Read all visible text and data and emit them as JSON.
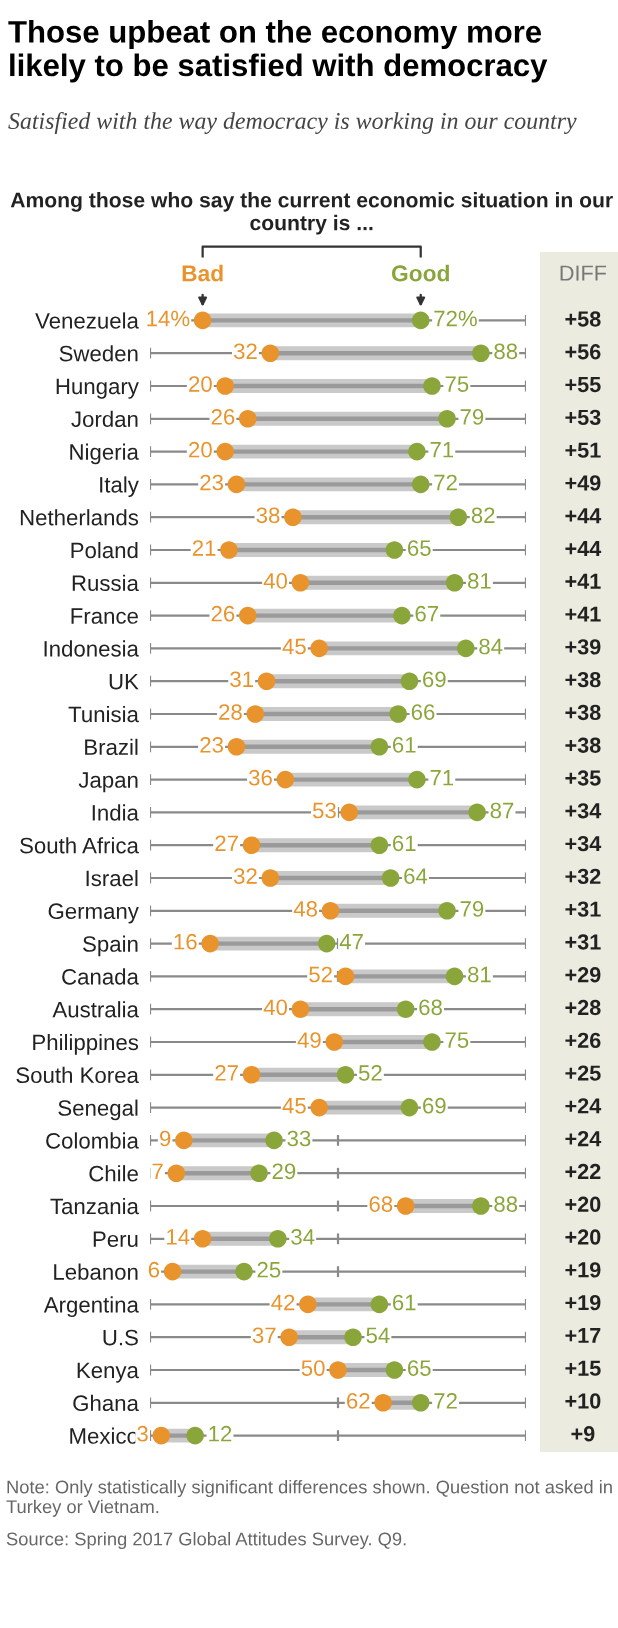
{
  "chart_data": {
    "type": "scatter",
    "orientation": "horizontal",
    "title": "Those upbeat on the economy more likely to be satisfied with democracy",
    "subtitle": "Satisfied with the way democracy is working in our country",
    "legend_title": "Among those who say the current economic situation in our country is ...",
    "categories": [
      "Venezuela",
      "Sweden",
      "Hungary",
      "Jordan",
      "Nigeria",
      "Italy",
      "Netherlands",
      "Poland",
      "Russia",
      "France",
      "Indonesia",
      "UK",
      "Tunisia",
      "Brazil",
      "Japan",
      "India",
      "South Africa",
      "Israel",
      "Germany",
      "Spain",
      "Canada",
      "Australia",
      "Philippines",
      "South Korea",
      "Senegal",
      "Colombia",
      "Chile",
      "Tanzania",
      "Peru",
      "Lebanon",
      "Argentina",
      "U.S",
      "Kenya",
      "Ghana",
      "Mexico"
    ],
    "series": [
      {
        "name": "Bad",
        "color": "#e8932b",
        "values": [
          14,
          32,
          20,
          26,
          20,
          23,
          38,
          21,
          40,
          26,
          45,
          31,
          28,
          23,
          36,
          53,
          27,
          32,
          48,
          16,
          52,
          40,
          49,
          27,
          45,
          9,
          7,
          68,
          14,
          6,
          42,
          37,
          50,
          62,
          3
        ],
        "value_labels": [
          "14%",
          "32",
          "20",
          "26",
          "20",
          "23",
          "38",
          "21",
          "40",
          "26",
          "45",
          "31",
          "28",
          "23",
          "36",
          "53",
          "27",
          "32",
          "48",
          "16",
          "52",
          "40",
          "49",
          "27",
          "45",
          "9",
          "7",
          "68",
          "14",
          "6",
          "42",
          "37",
          "50",
          "62",
          "3"
        ]
      },
      {
        "name": "Good",
        "color": "#8aa63a",
        "values": [
          72,
          88,
          75,
          79,
          71,
          72,
          82,
          65,
          81,
          67,
          84,
          69,
          66,
          61,
          71,
          87,
          61,
          64,
          79,
          47,
          81,
          68,
          75,
          52,
          69,
          33,
          29,
          88,
          34,
          25,
          61,
          54,
          65,
          72,
          12
        ],
        "value_labels": [
          "72%",
          "88",
          "75",
          "79",
          "71",
          "72",
          "82",
          "65",
          "81",
          "67",
          "84",
          "69",
          "66",
          "61",
          "71",
          "87",
          "61",
          "64",
          "79",
          "47",
          "81",
          "68",
          "75",
          "52",
          "69",
          "33",
          "29",
          "88",
          "34",
          "25",
          "61",
          "54",
          "65",
          "72",
          "12"
        ]
      }
    ],
    "xlim": [
      0,
      100
    ],
    "xticks": [
      {
        "value": 0,
        "label": null
      },
      {
        "value": 50,
        "label": null
      },
      {
        "value": 100,
        "label": null
      }
    ],
    "tick_labels": "y",
    "grid": "y",
    "annotations": [
      "DIFF",
      "+58",
      "+56",
      "+55",
      "+53",
      "+51",
      "+49",
      "+44",
      "+44",
      "+41",
      "+41",
      "+39",
      "+38",
      "+38",
      "+38",
      "+35",
      "+34",
      "+34",
      "+32",
      "+31",
      "+31",
      "+29",
      "+28",
      "+26",
      "+25",
      "+24",
      "+24",
      "+22",
      "+20",
      "+20",
      "+19",
      "+19",
      "+17",
      "+15",
      "+10",
      "+9",
      "Note: Only statistically significant differences shown. Question not asked in Turkey or Vietnam.",
      "Source: Spring 2017 Global Attitudes Survey. Q9."
    ]
  }
}
